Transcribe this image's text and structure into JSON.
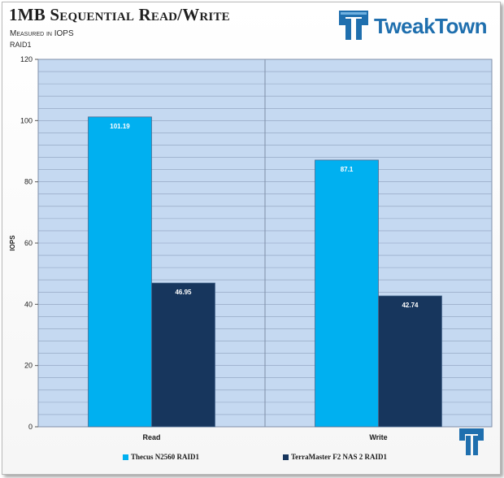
{
  "header": {
    "title": "1MB Sequential Read/Write",
    "subtitle_1": "Measured in IOPS",
    "subtitle_2": "RAID1",
    "logo_text": "TweakTown"
  },
  "colors": {
    "series_1": "#00b0f0",
    "series_2": "#17365d",
    "plot_bg": "#c5d9f1",
    "grid": "#8da0bc",
    "logo": "#1f6fae"
  },
  "chart_data": {
    "type": "bar",
    "categories": [
      "Read",
      "Write"
    ],
    "series": [
      {
        "name": "Thecus N2560 RAID1",
        "values": [
          101.19,
          87.1
        ]
      },
      {
        "name": "TerraMaster F2 NAS 2 RAID1",
        "values": [
          46.95,
          42.74
        ]
      }
    ],
    "title": "1MB Sequential Read/Write",
    "subtitle": "Measured in IOPS RAID1",
    "xlabel": "",
    "ylabel": "IOPS",
    "ylim": [
      0,
      120
    ],
    "yticks": [
      0,
      20,
      40,
      60,
      80,
      100,
      120
    ],
    "grid": true,
    "legend": "bottom"
  }
}
